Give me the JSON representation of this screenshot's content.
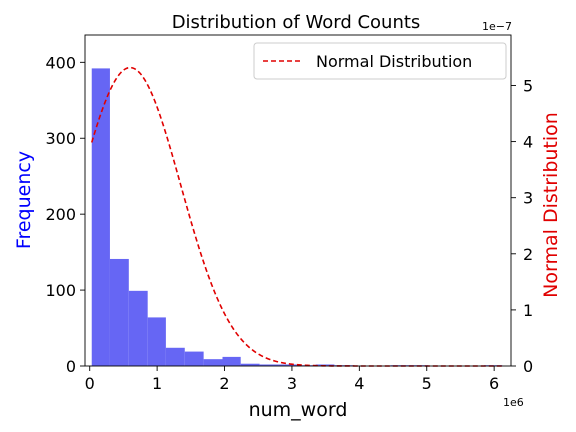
{
  "chart_data": {
    "type": "bar",
    "title": "Distribution of Word Counts",
    "xlabel": "num_word",
    "ylabel": "Frequency",
    "y2label": "Normal Distribution",
    "x_offset_text": "1e6",
    "y2_offset_text": "1e−7",
    "xlim": [
      -0.07,
      6.25
    ],
    "ylim": [
      0,
      436
    ],
    "y2lim": [
      0,
      5.9
    ],
    "x_ticks": [
      0,
      1,
      2,
      3,
      4,
      5,
      6
    ],
    "x_tick_labels": [
      "0",
      "1",
      "2",
      "3",
      "4",
      "5",
      "6"
    ],
    "y_ticks": [
      0,
      100,
      200,
      300,
      400
    ],
    "y_tick_labels": [
      "0",
      "100",
      "200",
      "300",
      "400"
    ],
    "y2_ticks": [
      0,
      1,
      2,
      3,
      4,
      5
    ],
    "y2_tick_labels": [
      "0",
      "1",
      "2",
      "3",
      "4",
      "5"
    ],
    "grid": false,
    "histogram": {
      "bin_edges": [
        0.03,
        0.3,
        0.58,
        0.86,
        1.13,
        1.41,
        1.69,
        1.97,
        2.24,
        2.52,
        2.8,
        3.07,
        3.35,
        3.63,
        3.91,
        4.18,
        4.46,
        4.74,
        5.02,
        5.29,
        5.57,
        5.85,
        6.12
      ],
      "frequencies": [
        392,
        141,
        99,
        64,
        24,
        19,
        9,
        12,
        3,
        2,
        2,
        1,
        2,
        1,
        0,
        0,
        1,
        1,
        0,
        0,
        0,
        1
      ],
      "color": "#6666f4"
    },
    "series": [
      {
        "name": "Normal Distribution",
        "type": "line",
        "axis": "right",
        "color": "#e00000",
        "style": "dashed",
        "mean": 0.6,
        "std": 0.75,
        "x_range": [
          0.03,
          6.12
        ]
      }
    ],
    "legend": {
      "position": "top-right",
      "entries": [
        "Normal Distribution"
      ]
    },
    "ylabel_color": "#0000ff",
    "y2label_color": "#e00000"
  }
}
